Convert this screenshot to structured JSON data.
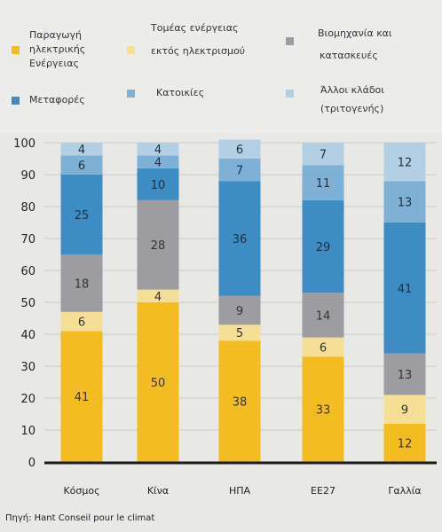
{
  "chart_data": {
    "type": "bar",
    "stacked": true,
    "categories": [
      "Κόσμος",
      "Κίνα",
      "ΗΠΑ",
      "ΕΕ27",
      "Γαλλία"
    ],
    "series": [
      {
        "name": "Παραγωγή ηλεκτρικής Ενέργειας",
        "color": "#f3bd21",
        "label_color": "#333333",
        "values": [
          41,
          50,
          38,
          33,
          12
        ]
      },
      {
        "name": "Τομέας ενέργειας εκτός ηλεκτρισμού",
        "color": "#f5df96",
        "label_color": "#333333",
        "values": [
          6,
          4,
          5,
          6,
          9
        ]
      },
      {
        "name": "Βιομηχανία και κατασκευές",
        "color": "#9d9da1",
        "label_color": "#333333",
        "values": [
          18,
          28,
          9,
          14,
          13
        ]
      },
      {
        "name": "Μεταφορές",
        "color": "#3d8dc4",
        "label_color": "#1f2f40",
        "values": [
          25,
          10,
          36,
          29,
          41
        ]
      },
      {
        "name": "Κατοικίες",
        "color": "#7fb0d6",
        "label_color": "#1f2f40",
        "values": [
          6,
          4,
          7,
          11,
          13
        ]
      },
      {
        "name": "Άλλοι κλάδοι (τριτογενής)",
        "color": "#b3cfe4",
        "label_color": "#1f2f40",
        "values": [
          4,
          4,
          6,
          7,
          12
        ]
      }
    ],
    "y_ticks": [
      "0",
      "10",
      "20",
      "30",
      "40",
      "50",
      "60",
      "70",
      "80",
      "90",
      "100"
    ],
    "ylim": [
      0,
      100
    ],
    "grid": true,
    "legend_position": "top"
  },
  "legend_lines": [
    [
      "Παραγωγή",
      "ηλεκτρικής",
      "Ενέργειας"
    ],
    [
      "Τομέας ενέργειας",
      "εκτός ηλεκτρισμού"
    ],
    [
      "Βιομηχανία και",
      "κατασκευές"
    ],
    [
      "Μεταφορές"
    ],
    [
      "Κατοικίες"
    ],
    [
      "Άλλοι κλάδοι",
      "(τριτογενής)"
    ]
  ],
  "source": "Πηγή:  Hant Conseil pour  le climat"
}
